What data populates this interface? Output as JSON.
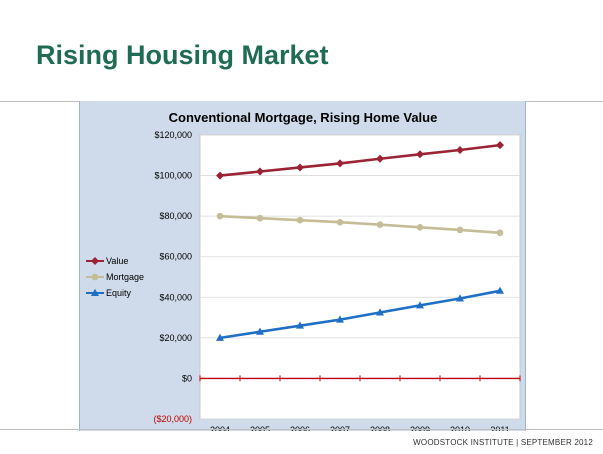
{
  "slide": {
    "title": "Rising Housing Market",
    "footer": "WOODSTOCK INSTITUTE  |  SEPTEMBER 2012"
  },
  "chart_data": {
    "type": "line",
    "title": "Conventional Mortgage, Rising Home Value",
    "xlabel": "",
    "ylabel": "",
    "categories": [
      "2004",
      "2005",
      "2006",
      "2007",
      "2008",
      "2009",
      "2010",
      "2011"
    ],
    "ylim": [
      -20000,
      120000
    ],
    "yticks": [
      -20000,
      0,
      20000,
      40000,
      60000,
      80000,
      100000,
      120000
    ],
    "ytick_labels": [
      "($20,000)",
      "$0",
      "$20,000",
      "$40,000",
      "$60,000",
      "$80,000",
      "$100,000",
      "$120,000"
    ],
    "grid": true,
    "legend_position": "left",
    "zero_line_color": "#c00000",
    "series": [
      {
        "name": "Value",
        "color": "#9b2335",
        "marker": "diamond",
        "values": [
          100000,
          102000,
          104000,
          106000,
          108300,
          110500,
          112600,
          115000
        ]
      },
      {
        "name": "Mortgage",
        "color": "#c4bd97",
        "marker": "circle",
        "values": [
          80000,
          79000,
          78000,
          77000,
          75800,
          74500,
          73200,
          71800
        ]
      },
      {
        "name": "Equity",
        "color": "#1f6fc5",
        "marker": "triangle",
        "values": [
          20000,
          23000,
          26000,
          29000,
          32500,
          36000,
          39400,
          43200
        ]
      }
    ]
  }
}
